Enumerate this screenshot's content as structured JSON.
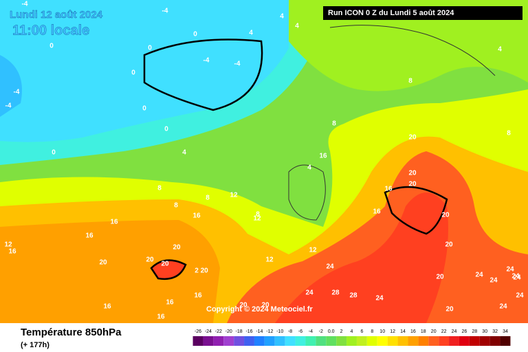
{
  "header": {
    "date": "Lundi 12 août 2024",
    "local_time": "11:00 locale",
    "run": "Run ICON 0 Z du Lundi 5 août 2024"
  },
  "footer": {
    "title": "Température 850hPa",
    "lead": "(+ 177h)",
    "copyright": "Copyright © 2024 Meteociel.fr"
  },
  "legend": {
    "labels": [
      "-26",
      "-24",
      "-22",
      "-20",
      "-18",
      "-16",
      "-14",
      "-12",
      "-10",
      "-8",
      "-6",
      "-4",
      "-2",
      "0.0",
      "2",
      "4",
      "6",
      "8",
      "10",
      "12",
      "14",
      "16",
      "18",
      "20",
      "22",
      "24",
      "26",
      "28",
      "30",
      "32",
      "34"
    ],
    "colors": [
      "#5a0060",
      "#7a1090",
      "#9020b0",
      "#a040d0",
      "#7050e0",
      "#4060f0",
      "#2080ff",
      "#20a0ff",
      "#30c0ff",
      "#40e0ff",
      "#40f0e0",
      "#40f0b0",
      "#50e080",
      "#60e060",
      "#80e040",
      "#a0f020",
      "#c0f020",
      "#e0ff00",
      "#ffff00",
      "#ffe000",
      "#ffc000",
      "#ffa000",
      "#ff8000",
      "#ff6020",
      "#ff4020",
      "#f02020",
      "#e00010",
      "#c00000",
      "#a00000",
      "#800000",
      "#500000"
    ]
  },
  "contour_labels": [
    "-4",
    "-4",
    "0",
    "0",
    "-4",
    "-4",
    "4",
    "4",
    "4",
    "4",
    "0",
    "0",
    "0",
    "0",
    "-4",
    "-4",
    "8",
    "8",
    "8",
    "0",
    "4",
    "4",
    "8",
    "8",
    "8",
    "12",
    "12",
    "16",
    "16",
    "16",
    "16",
    "20",
    "20",
    "20",
    "12",
    "16",
    "20",
    "20",
    "20",
    "16",
    "12",
    "20",
    "24",
    "24",
    "28",
    "28",
    "24",
    "24",
    "24",
    "24",
    "16",
    "16",
    "16",
    "20",
    "20",
    "20",
    "24",
    "24",
    "24",
    "24",
    "20",
    "20",
    "12",
    "8",
    "16",
    "16",
    "20",
    "2 20"
  ]
}
